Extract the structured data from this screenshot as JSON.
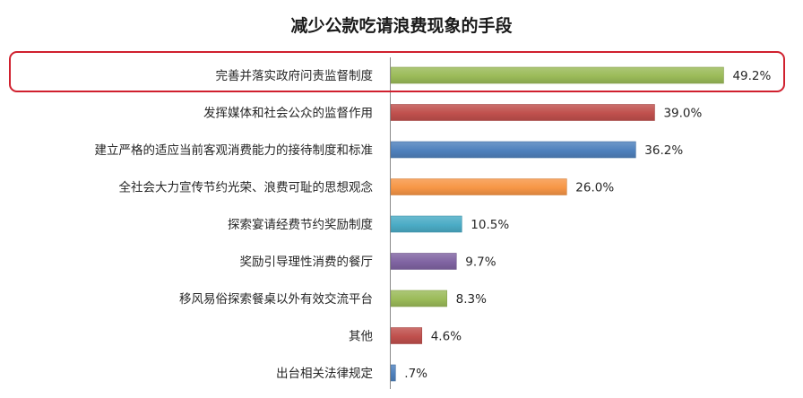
{
  "chart_data": {
    "type": "bar",
    "orientation": "horizontal",
    "title": "减少公款吃请浪费现象的手段",
    "categories": [
      "完善并落实政府问责监督制度",
      "发挥媒体和社会公众的监督作用",
      "建立严格的适应当前客观消费能力的接待制度和标准",
      "全社会大力宣传节约光荣、浪费可耻的思想观念",
      "探索宴请经费节约奖励制度",
      "奖励引导理性消费的餐厅",
      "移风易俗探索餐桌以外有效交流平台",
      "其他",
      "出台相关法律规定"
    ],
    "values": [
      49.2,
      39.0,
      36.2,
      26.0,
      10.5,
      9.7,
      8.3,
      4.6,
      0.7
    ],
    "value_labels": [
      "49.2%",
      "39.0%",
      "36.2%",
      "26.0%",
      "10.5%",
      "9.7%",
      "8.3%",
      "4.6%",
      ".7%"
    ],
    "colors": [
      "#9bbb59",
      "#c0504d",
      "#4f81bd",
      "#f79646",
      "#4bacc6",
      "#8064a2",
      "#9bbb59",
      "#c0504d",
      "#4f81bd"
    ],
    "highlighted_category": "完善并落实政府问责监督制度",
    "highlight_color": "#d0202e",
    "legend": "none",
    "grid": false
  }
}
